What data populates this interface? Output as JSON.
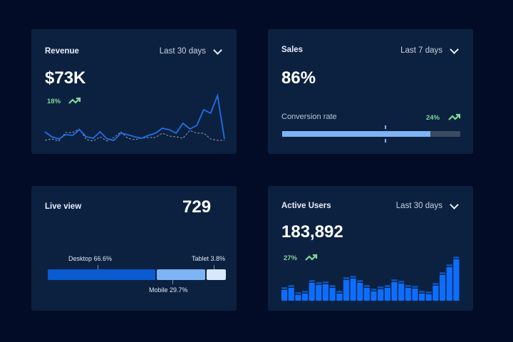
{
  "revenue": {
    "title": "Revenue",
    "range": "Last 30 days",
    "value": "$73K",
    "change": "18%",
    "trend_icon": "trend-up-icon",
    "chart_data": {
      "type": "line",
      "series": [
        {
          "values": [
            15,
            8,
            5,
            11,
            10,
            18,
            8,
            6,
            15,
            5,
            3,
            13,
            11,
            8,
            6,
            10,
            13,
            20,
            18,
            13,
            27,
            19,
            24,
            46,
            41,
            66,
            5
          ]
        },
        {
          "values": [
            3,
            5,
            2,
            14,
            14,
            19,
            4,
            2,
            8,
            2,
            7,
            15,
            6,
            4,
            6,
            7,
            7,
            13,
            9,
            8,
            6,
            17,
            13,
            13,
            5,
            3,
            3
          ]
        }
      ],
      "colors": [
        "#1f6fe6",
        "#8a96a8"
      ]
    }
  },
  "sales": {
    "title": "Sales",
    "range": "Last 7 days",
    "value": "86%",
    "metric_label": "Conversion rate",
    "change": "24%",
    "progress": 0.83,
    "target_marker": 0.58,
    "colors": {
      "fill": "#7db4f5",
      "track": "#3a4a60",
      "marker": "#7db4f5"
    }
  },
  "live": {
    "title": "Live view",
    "value": "729",
    "segments": [
      {
        "label": "Desktop 66.6%",
        "share": 66.6,
        "color": "#0a5bd0"
      },
      {
        "label": "Mobile 29.7%",
        "share": 29.7,
        "color": "#7db4f5"
      },
      {
        "label": "Tablet 3.8%",
        "share": 3.8,
        "color": "#d8e8fb"
      }
    ]
  },
  "users": {
    "title": "Active Users",
    "range": "Last 30 days",
    "value": "183,892",
    "change": "27%",
    "chart_data": {
      "type": "bar",
      "values": [
        15,
        18,
        8,
        10,
        25,
        22,
        23,
        18,
        10,
        29,
        31,
        25,
        18,
        13,
        16,
        18,
        26,
        24,
        18,
        17,
        10,
        9,
        21,
        36,
        47,
        58
      ],
      "colors": [
        "#0d6efd",
        "#0a4fb0"
      ]
    }
  }
}
